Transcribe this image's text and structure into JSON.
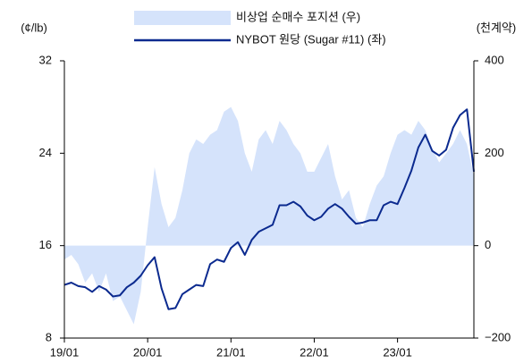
{
  "chart_data": {
    "type": "line",
    "y_label": "(¢/lb)",
    "y2_label": "(천계약)",
    "x": [
      "19/01",
      null,
      null,
      null,
      null,
      null,
      null,
      null,
      null,
      null,
      null,
      null,
      "20/01",
      null,
      null,
      null,
      null,
      null,
      null,
      null,
      null,
      null,
      null,
      null,
      "21/01",
      null,
      null,
      null,
      null,
      null,
      null,
      null,
      null,
      null,
      null,
      null,
      "22/01",
      null,
      null,
      null,
      null,
      null,
      null,
      null,
      null,
      null,
      null,
      null,
      "23/01",
      null,
      null,
      null,
      null,
      null,
      null,
      null,
      null,
      null,
      null,
      null
    ],
    "ylim": [
      8,
      32
    ],
    "yticks": [
      8,
      16,
      24,
      32
    ],
    "y2lim": [
      -200,
      400
    ],
    "y2ticks": [
      {
        "value": -200,
        "label": "−200"
      },
      0,
      200,
      400
    ],
    "legend": "top",
    "series": [
      {
        "name": "비상업 순매수 포지션 (우)",
        "type": "area",
        "color": "#d5e3fb",
        "axis": "y2",
        "values": [
          -30,
          -20,
          -40,
          -80,
          -60,
          -100,
          -60,
          -120,
          -110,
          -140,
          -170,
          -100,
          40,
          170,
          90,
          40,
          60,
          120,
          200,
          230,
          220,
          240,
          250,
          290,
          300,
          270,
          200,
          160,
          230,
          250,
          220,
          270,
          250,
          220,
          200,
          160,
          160,
          190,
          220,
          150,
          100,
          120,
          60,
          40,
          90,
          130,
          150,
          200,
          240,
          250,
          240,
          270,
          250,
          210,
          180,
          200,
          220,
          250,
          220,
          150
        ]
      },
      {
        "name": "NYBOT 원당 (Sugar #11) (좌)",
        "type": "line",
        "color": "#0b2a8f",
        "values": [
          12.6,
          12.8,
          12.5,
          12.4,
          12.0,
          12.5,
          12.2,
          11.6,
          11.7,
          12.4,
          12.8,
          13.4,
          14.3,
          15.0,
          12.3,
          10.5,
          10.6,
          11.8,
          12.2,
          12.6,
          12.5,
          14.4,
          14.8,
          14.6,
          15.8,
          16.3,
          15.2,
          16.5,
          17.2,
          17.5,
          17.8,
          19.5,
          19.5,
          19.8,
          19.4,
          18.6,
          18.2,
          18.5,
          19.2,
          19.6,
          19.2,
          18.5,
          17.9,
          18.0,
          18.2,
          18.2,
          19.5,
          19.8,
          19.6,
          21.0,
          22.5,
          24.5,
          25.6,
          24.2,
          23.8,
          24.3,
          26.2,
          27.3,
          27.8,
          22.4
        ]
      }
    ]
  }
}
